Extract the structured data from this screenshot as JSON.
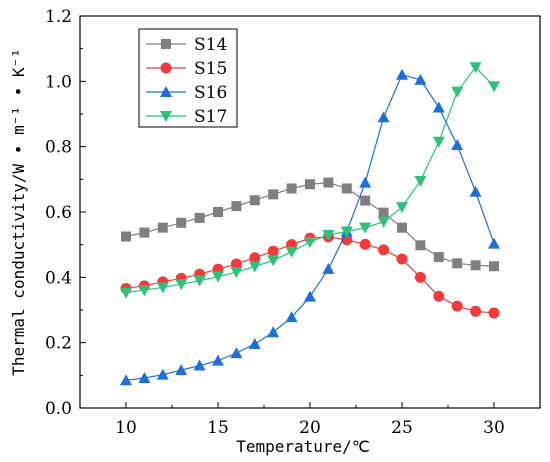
{
  "chart_data": {
    "type": "line",
    "xlabel": "Temperature/℃",
    "ylabel": "Thermal conductivity/W • m⁻¹ • K⁻¹",
    "xlim": [
      7.5,
      32.5
    ],
    "ylim": [
      0.0,
      1.2
    ],
    "xticks": [
      "10",
      "15",
      "20",
      "25",
      "30"
    ],
    "yticks": [
      "0.0",
      "0.2",
      "0.4",
      "0.6",
      "0.8",
      "1.0",
      "1.2"
    ],
    "grid": false,
    "legend_position": "top-left",
    "x": [
      10,
      11,
      12,
      13,
      14,
      15,
      16,
      17,
      18,
      19,
      20,
      21,
      22,
      23,
      24,
      25,
      26,
      27,
      28,
      29,
      30
    ],
    "series": [
      {
        "name": "S14",
        "color": "#7f7f7f",
        "marker": "square",
        "values": [
          0.525,
          0.537,
          0.552,
          0.567,
          0.582,
          0.6,
          0.618,
          0.636,
          0.654,
          0.672,
          0.685,
          0.69,
          0.672,
          0.635,
          0.598,
          0.552,
          0.498,
          0.462,
          0.443,
          0.437,
          0.434
        ]
      },
      {
        "name": "S15",
        "color": "#ef3b3b",
        "marker": "circle",
        "values": [
          0.366,
          0.374,
          0.386,
          0.397,
          0.41,
          0.425,
          0.441,
          0.46,
          0.48,
          0.5,
          0.52,
          0.524,
          0.515,
          0.501,
          0.484,
          0.456,
          0.4,
          0.342,
          0.312,
          0.296,
          0.291
        ]
      },
      {
        "name": "S16",
        "color": "#1f6fd6",
        "marker": "triangle-up",
        "values": [
          0.085,
          0.092,
          0.102,
          0.116,
          0.13,
          0.145,
          0.168,
          0.196,
          0.232,
          0.278,
          0.341,
          0.426,
          0.54,
          0.69,
          0.89,
          1.02,
          1.005,
          0.92,
          0.805,
          0.662,
          0.503
        ]
      },
      {
        "name": "S17",
        "color": "#2fc07a",
        "marker": "triangle-down",
        "values": [
          0.353,
          0.361,
          0.369,
          0.379,
          0.39,
          0.402,
          0.416,
          0.433,
          0.452,
          0.478,
          0.508,
          0.53,
          0.54,
          0.552,
          0.57,
          0.615,
          0.695,
          0.815,
          0.968,
          1.043,
          0.985
        ]
      }
    ]
  }
}
